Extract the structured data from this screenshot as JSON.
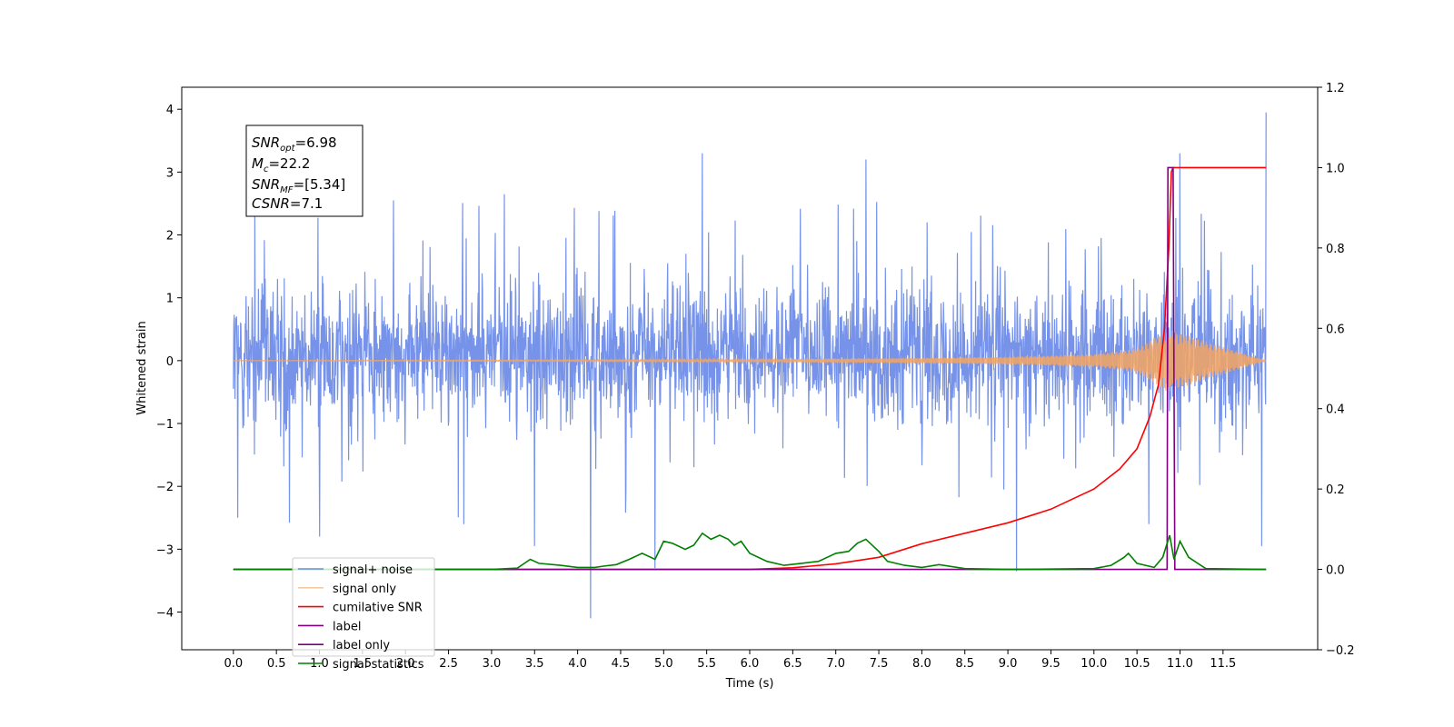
{
  "chart_data": {
    "type": "line",
    "title": "",
    "xlabel": "Time (s)",
    "ylabel": "Whitened strain",
    "xlim": [
      -0.6,
      12.6
    ],
    "ylim": [
      -4.6,
      4.35
    ],
    "y2lim": [
      -0.2,
      1.2
    ],
    "x_ticks": [
      0.0,
      0.5,
      1.0,
      1.5,
      2.0,
      2.5,
      3.0,
      3.5,
      4.0,
      4.5,
      5.0,
      5.5,
      6.0,
      6.5,
      7.0,
      7.5,
      8.0,
      8.5,
      9.0,
      9.5,
      10.0,
      10.5,
      11.0,
      11.5
    ],
    "x_tick_labels": [
      "0.0",
      "0.5",
      "1.0",
      "1.5",
      "2.0",
      "2.5",
      "3.0",
      "3.5",
      "4.0",
      "4.5",
      "5.0",
      "5.5",
      "6.0",
      "6.5",
      "7.0",
      "7.5",
      "8.0",
      "8.5",
      "9.0",
      "9.5",
      "10.0",
      "10.5",
      "11.0",
      "11.5"
    ],
    "y_ticks": [
      -4,
      -3,
      -2,
      -1,
      0,
      1,
      2,
      3,
      4
    ],
    "y_tick_labels": [
      "−4",
      "−3",
      "−2",
      "−1",
      "0",
      "1",
      "2",
      "3",
      "4"
    ],
    "y2_ticks": [
      -0.2,
      0.0,
      0.2,
      0.4,
      0.6,
      0.8,
      1.0,
      1.2
    ],
    "y2_tick_labels": [
      "−0.2",
      "0.0",
      "0.2",
      "0.4",
      "0.6",
      "0.8",
      "1.0",
      "1.2"
    ],
    "grid": false,
    "legend_position": "lower-left",
    "annotation": {
      "snr_opt": {
        "symbol": "SNR",
        "sub": "opt",
        "value": "=6.98"
      },
      "mc": {
        "symbol": "M",
        "sub": "c",
        "value": "=22.2"
      },
      "snr_mf": {
        "symbol": "SNR",
        "sub": "MF",
        "value": "=[5.34]"
      },
      "csnr": {
        "symbol": "CSNR",
        "sub": "",
        "value": "=7.1"
      }
    },
    "series": [
      {
        "name": "signal+ noise",
        "axis": "left",
        "color": "#4169e1",
        "x_range": [
          0.0,
          12.0
        ],
        "envelope_typical": [
          -1.8,
          2.4
        ],
        "spikes": [
          [
            0.05,
            2.45
          ],
          [
            0.05,
            -2.5
          ],
          [
            5.45,
            3.3
          ],
          [
            7.35,
            3.2
          ],
          [
            11.0,
            3.3
          ],
          [
            12.0,
            3.95
          ],
          [
            1.0,
            -2.8
          ],
          [
            4.15,
            -4.1
          ],
          [
            9.1,
            -3.35
          ],
          [
            3.5,
            -2.95
          ],
          [
            4.9,
            -3.3
          ],
          [
            11.95,
            -2.95
          ]
        ]
      },
      {
        "name": "signal only",
        "axis": "left",
        "color": "#f4a460",
        "x": [
          0.0,
          4.0,
          6.0,
          8.0,
          9.0,
          10.0,
          10.3,
          10.5,
          10.7,
          10.85,
          12.0
        ],
        "amplitude": [
          0.0,
          0.01,
          0.02,
          0.04,
          0.06,
          0.1,
          0.15,
          0.2,
          0.35,
          0.5,
          0.0
        ]
      },
      {
        "name": "cumilative SNR",
        "axis": "right",
        "color": "#ff0000",
        "x": [
          0.0,
          6.0,
          6.5,
          7.0,
          7.5,
          8.0,
          8.5,
          9.0,
          9.5,
          10.0,
          10.3,
          10.5,
          10.65,
          10.75,
          10.82,
          10.87,
          10.9,
          10.92,
          11.0,
          12.0
        ],
        "values": [
          0.0,
          0.0,
          0.004,
          0.014,
          0.03,
          0.064,
          0.09,
          0.116,
          0.15,
          0.2,
          0.25,
          0.3,
          0.38,
          0.46,
          0.6,
          0.8,
          0.99,
          1.0,
          1.0,
          1.0
        ]
      },
      {
        "name": "label",
        "axis": "right",
        "color": "#800080",
        "x": [
          0.0,
          10.85,
          10.86,
          10.88,
          10.9,
          10.92,
          10.94,
          12.0
        ],
        "values": [
          0.0,
          0.0,
          1.0,
          1.0,
          1.0,
          1.0,
          0.0,
          0.0
        ]
      },
      {
        "name": "label only",
        "axis": "right",
        "color": "#800080",
        "x": [],
        "values": []
      },
      {
        "name": "signal statistics",
        "axis": "right",
        "color": "#008000",
        "x": [
          0.0,
          3.0,
          3.3,
          3.45,
          3.55,
          3.8,
          4.0,
          4.2,
          4.3,
          4.45,
          4.6,
          4.75,
          4.9,
          5.0,
          5.1,
          5.25,
          5.35,
          5.45,
          5.55,
          5.65,
          5.75,
          5.82,
          5.9,
          6.0,
          6.2,
          6.4,
          6.6,
          6.8,
          7.0,
          7.15,
          7.25,
          7.35,
          7.5,
          7.6,
          7.8,
          8.0,
          8.2,
          8.5,
          9.0,
          10.0,
          10.2,
          10.35,
          10.4,
          10.5,
          10.7,
          10.8,
          10.88,
          10.93,
          11.0,
          11.1,
          11.3,
          12.0
        ],
        "values": [
          0.0,
          0.0,
          0.003,
          0.025,
          0.015,
          0.01,
          0.005,
          0.005,
          0.008,
          0.012,
          0.025,
          0.04,
          0.025,
          0.07,
          0.065,
          0.05,
          0.06,
          0.09,
          0.075,
          0.085,
          0.075,
          0.06,
          0.07,
          0.04,
          0.02,
          0.01,
          0.015,
          0.02,
          0.04,
          0.045,
          0.065,
          0.075,
          0.045,
          0.02,
          0.01,
          0.005,
          0.012,
          0.002,
          0.0,
          0.002,
          0.01,
          0.03,
          0.04,
          0.015,
          0.005,
          0.03,
          0.085,
          0.025,
          0.07,
          0.03,
          0.002,
          0.0
        ]
      }
    ]
  }
}
